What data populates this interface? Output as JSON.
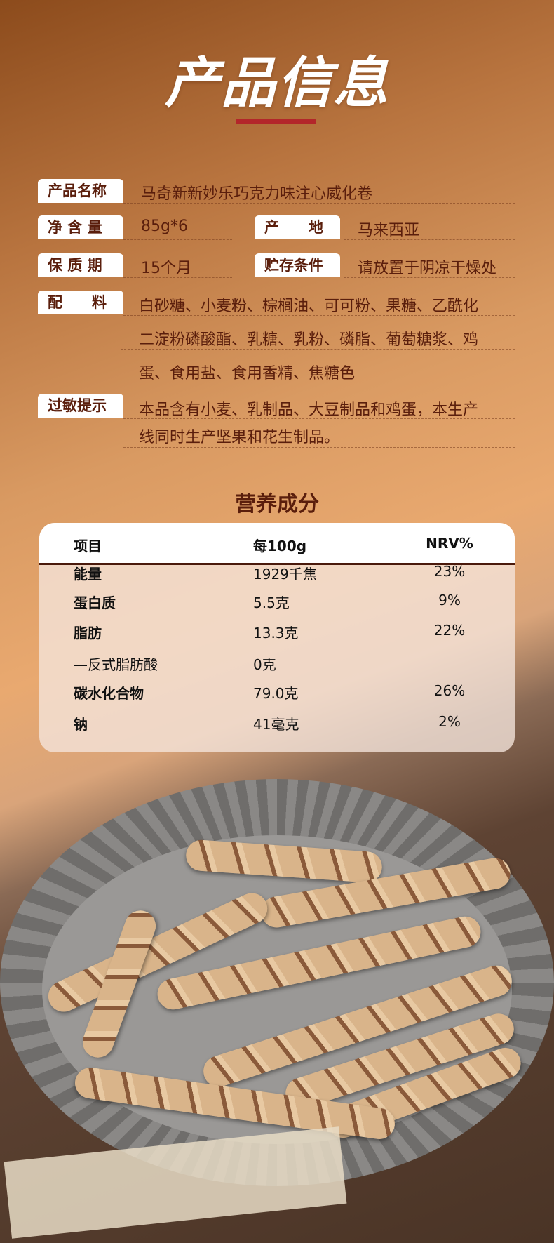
{
  "header": {
    "title": "产品信息"
  },
  "info": {
    "name_label": "产品名称",
    "name": "马奇新新妙乐巧克力味注心威化卷",
    "net_label": "净 含 量",
    "net": "85g*6",
    "origin_label": "产　　地",
    "origin": "马来西亚",
    "shelf_label": "保 质 期",
    "shelf": "15个月",
    "storage_label": "贮存条件",
    "storage": "请放置于阴凉干燥处",
    "ingredients_label": "配　　料",
    "ingredients": [
      "白砂糖、小麦粉、棕榈油、可可粉、果糖、乙酰化",
      "二淀粉磷酸酯、乳糖、乳粉、磷脂、葡萄糖浆、鸡",
      "蛋、食用盐、食用香精、焦糖色"
    ],
    "allergy_label": "过敏提示",
    "allergy": [
      "本品含有小麦、乳制品、大豆制品和鸡蛋，本生产",
      "线同时生产坚果和花生制品。"
    ]
  },
  "nutrition": {
    "title": "营养成分",
    "headers": [
      "项目",
      "每100g",
      "NRV%"
    ],
    "rows": [
      {
        "item": "能量",
        "per100g": "1929千焦",
        "nrv": "23%",
        "bold": true
      },
      {
        "item": "蛋白质",
        "per100g": "5.5克",
        "nrv": "9%",
        "bold": true
      },
      {
        "item": "脂肪",
        "per100g": "13.3克",
        "nrv": "22%",
        "bold": true
      },
      {
        "item": "—反式脂肪酸",
        "per100g": "0克",
        "nrv": "",
        "bold": false
      },
      {
        "item": "碳水化合物",
        "per100g": "79.0克",
        "nrv": "26%",
        "bold": true
      },
      {
        "item": "钠",
        "per100g": "41毫克",
        "nrv": "2%",
        "bold": true
      }
    ]
  },
  "colors": {
    "accent": "#b3262a",
    "text": "#5a1e0c"
  }
}
